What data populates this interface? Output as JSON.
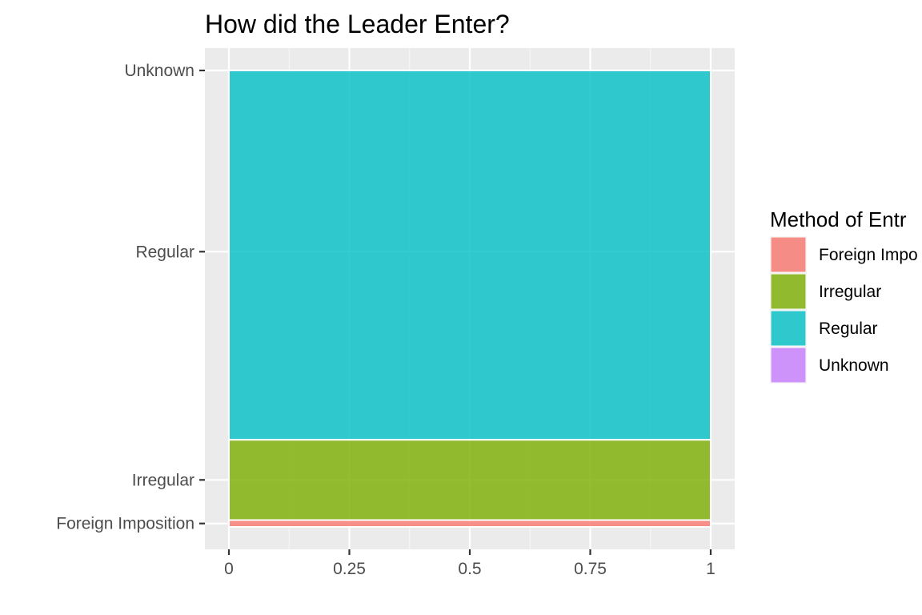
{
  "chart_data": {
    "type": "bar",
    "orientation": "horizontal",
    "title": "How did the Leader Enter?",
    "xlabel": "",
    "ylabel": "",
    "xlim": [
      0,
      1
    ],
    "x_ticks": [
      "0",
      "0.25",
      "0.5",
      "0.75",
      "1"
    ],
    "x_tick_values": [
      0,
      0.25,
      0.5,
      0.75,
      1
    ],
    "categories": [
      "Foreign Imposition",
      "Irregular",
      "Regular",
      "Unknown"
    ],
    "category_positions": [
      0.0075,
      0.103,
      0.603,
      1.0
    ],
    "bands": [
      {
        "category": "Foreign Imposition",
        "start": 0.0,
        "end": 0.015
      },
      {
        "category": "Irregular",
        "start": 0.015,
        "end": 0.191
      },
      {
        "category": "Regular",
        "start": 0.191,
        "end": 1.0
      },
      {
        "category": "Unknown",
        "start": 1.0,
        "end": 1.0
      }
    ],
    "values": [
      0.015,
      0.176,
      0.809,
      0.0
    ],
    "colors": [
      "#F8766D",
      "#7CAE00",
      "#00BFC4",
      "#C77CFF"
    ],
    "grid": true,
    "legend": {
      "title": "Method of Entr",
      "position": "right",
      "entries": [
        "Foreign Impo",
        "Irregular",
        "Regular",
        "Unknown"
      ]
    }
  }
}
